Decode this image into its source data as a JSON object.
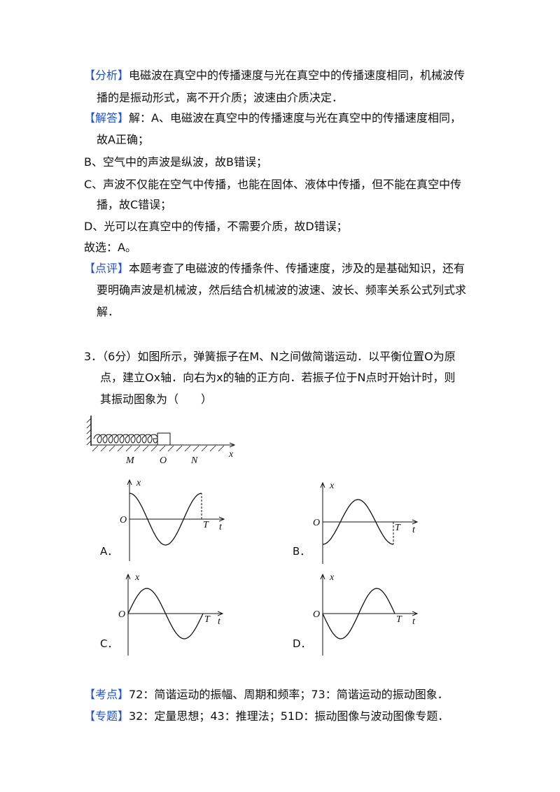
{
  "analysis": {
    "tag": "【分析】",
    "lines": [
      "电磁波在真空中的传播速度与光在真空中的传播速度相同，机械波传",
      "播的是振动形式，离不开介质；波速由介质决定．"
    ]
  },
  "solution": {
    "tag": "【解答】",
    "lines": [
      "解：A、电磁波在真空中的传播速度与光在真空中的传播速度相同，",
      "故A正确；"
    ]
  },
  "steps": [
    [
      "B、空气中的声波是纵波，故B错误；"
    ],
    [
      "C、声波不仅能在空气中传播，也能在固体、液体中传播，但不能在真空中传",
      "播，故C错误；"
    ],
    [
      "D、光可以在真空中的传播，不需要介质，故D错误；"
    ],
    [
      "故选：A。"
    ]
  ],
  "comment": {
    "tag": "【点评】",
    "lines": [
      "本题考查了电磁波的传播条件、传播速度，涉及的是基础知识，还有",
      "要明确声波是机械波，然后结合机械波的波速、波长、频率关系公式列式求",
      "解．"
    ]
  },
  "question": {
    "lines": [
      "3．（6分）如图所示，弹簧振子在M、N之间做简谐运动．以平衡位置O为原",
      "点，建立Ox轴．向右为x的轴的正方向．若振子位于N点时开始计时，则",
      "其振动图象为（　　）"
    ]
  },
  "spring_figure": {
    "labels": [
      "M",
      "O",
      "N",
      "x"
    ]
  },
  "options": [
    {
      "label": "A．",
      "axis_x": "x",
      "origin": "O",
      "period": "T",
      "axis_t": "t"
    },
    {
      "label": "B．",
      "axis_x": "x",
      "origin": "O",
      "period": "T",
      "axis_t": "t"
    },
    {
      "label": "C．",
      "axis_x": "x",
      "origin": "O",
      "period": "T",
      "axis_t": "t"
    },
    {
      "label": "D．",
      "axis_x": "x",
      "origin": "O",
      "period": "T",
      "axis_t": "t"
    }
  ],
  "knowledge": {
    "tag": "【考点】",
    "text": "72：简谐运动的振幅、周期和频率；73：简谐运动的振动图象．"
  },
  "topic": {
    "tag": "【专题】",
    "text": "32：定量思想；43：推理法；51D：振动图像与波动图像专题．"
  }
}
